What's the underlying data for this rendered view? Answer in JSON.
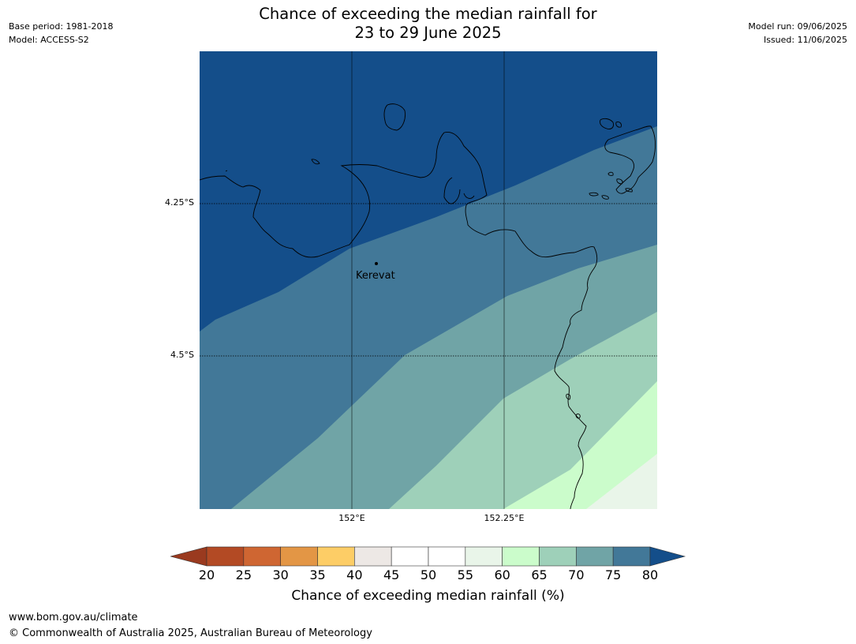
{
  "title": {
    "line1": "Chance of exceeding the median rainfall for",
    "line2": "23 to 29 June 2025"
  },
  "meta_left": {
    "base_period": "Base period: 1981-2018",
    "model": "Model: ACCESS-S2"
  },
  "meta_right": {
    "model_run": "Model run: 09/06/2025",
    "issued": "Issued: 11/06/2025"
  },
  "map": {
    "lat_labels": [
      "4.25°S",
      "4.5°S"
    ],
    "lon_labels": [
      "152°E",
      "152.25°E"
    ],
    "place": "Kerevat",
    "zones": [
      {
        "range": "75-80+",
        "color": "#144e8a"
      },
      {
        "range": "70-75",
        "color": "#427898"
      },
      {
        "range": "65-70",
        "color": "#70a4a6"
      },
      {
        "range": "60-65",
        "color": "#9ed0b9"
      },
      {
        "range": "55-60",
        "color": "#cbfccb"
      },
      {
        "range": "50-55",
        "color": "#e9f5e9"
      }
    ]
  },
  "colorbar": {
    "ticks": [
      "20",
      "25",
      "30",
      "35",
      "40",
      "45",
      "50",
      "55",
      "60",
      "65",
      "70",
      "75",
      "80"
    ],
    "colors": {
      "under": "#9a3a1f",
      "bins": [
        "#b34a24",
        "#cf6632",
        "#e39645",
        "#fdcd66",
        "#ede8e5",
        "#ffffff",
        "#ffffff",
        "#e9f5e9",
        "#cbfccb",
        "#9ed0b9",
        "#70a4a6",
        "#427898"
      ],
      "over": "#144e8a"
    },
    "label": "Chance of exceeding median rainfall (%)"
  },
  "footer": {
    "url": "www.bom.gov.au/climate",
    "copyright": "© Commonwealth of Australia 2025, Australian Bureau of Meteorology"
  }
}
